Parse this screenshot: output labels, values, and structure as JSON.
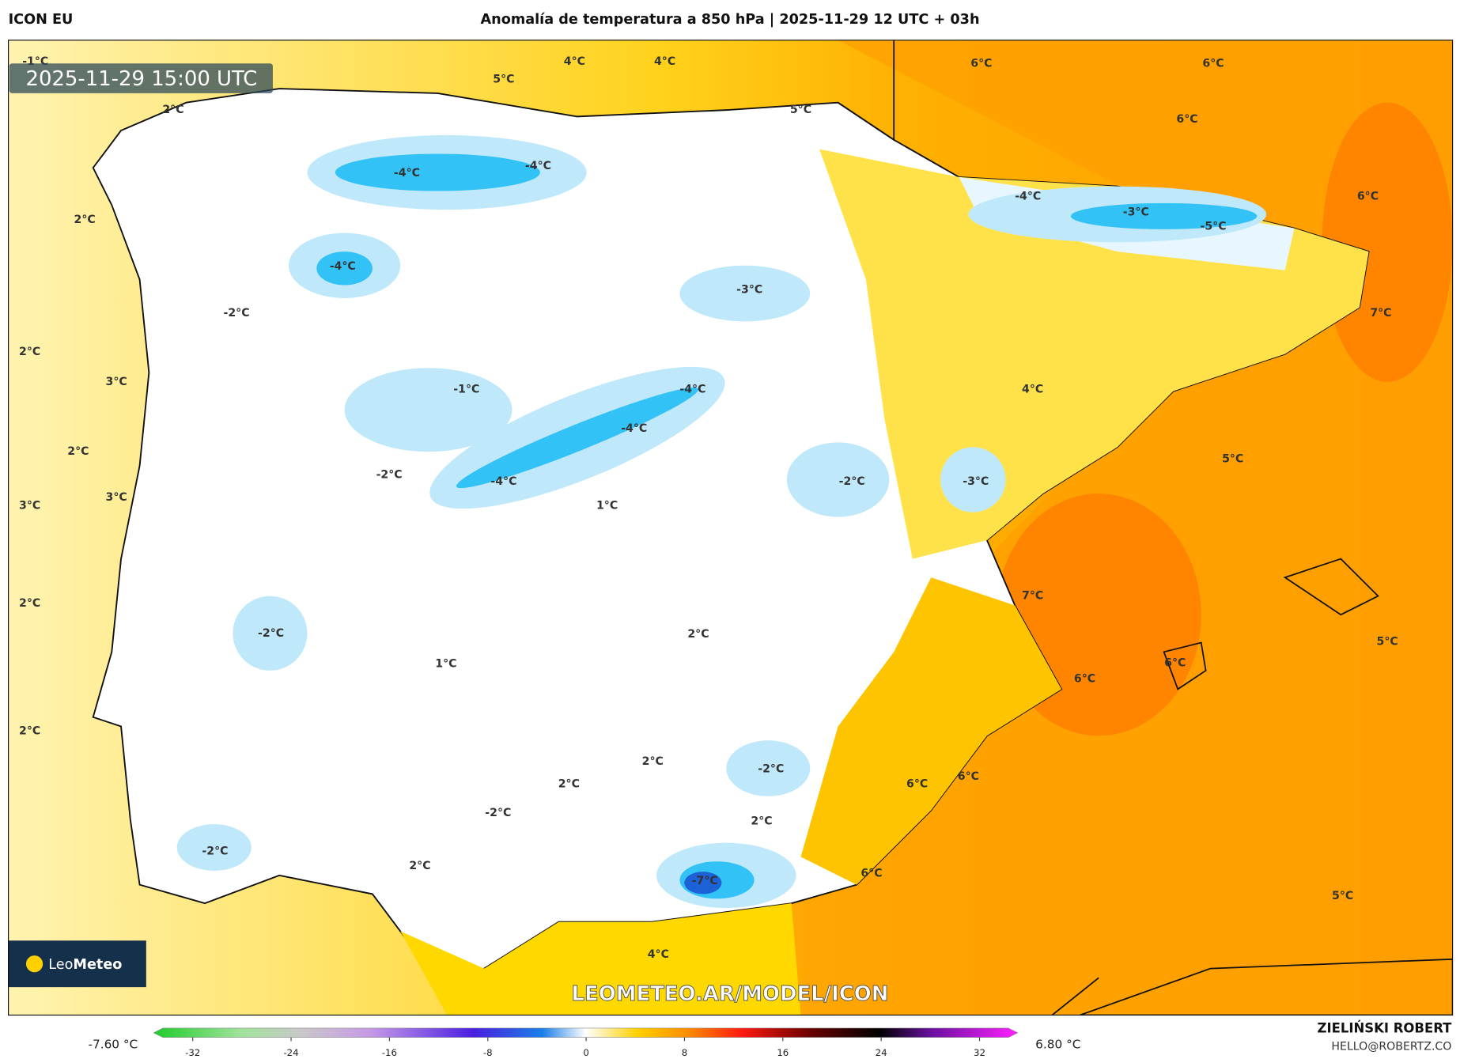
{
  "header": {
    "model": "ICON EU",
    "title": "Anomalía de temperatura a 850 hPa | 2025-11-29 12 UTC + 03h",
    "author": "ZIELIŃSKI ROBERT",
    "contact": "HELLO@ROBERTZ.CO"
  },
  "map": {
    "timestamp": "2025-11-29 15:00 UTC",
    "watermark": "LEOMETEO.AR/MODEL/ICON",
    "logo_light": "Leo",
    "logo_bold": "Meteo",
    "labels": [
      "-1°C",
      "5°C",
      "4°C",
      "4°C",
      "6°C",
      "6°C",
      "2°C",
      "5°C",
      "6°C",
      "-4°C",
      "-4°C",
      "-4°C",
      "6°C",
      "2°C",
      "-3°C",
      "-5°C",
      "-4°C",
      "-3°C",
      "-2°C",
      "7°C",
      "2°C",
      "3°C",
      "-1°C",
      "-4°C",
      "4°C",
      "-4°C",
      "2°C",
      "5°C",
      "-2°C",
      "-4°C",
      "-2°C",
      "-3°C",
      "3°C",
      "3°C",
      "1°C",
      "7°C",
      "2°C",
      "-2°C",
      "2°C",
      "5°C",
      "1°C",
      "6°C",
      "6°C",
      "2°C",
      "2°C",
      "-2°C",
      "2°C",
      "6°C",
      "6°C",
      "-2°C",
      "2°C",
      "-2°C",
      "2°C",
      "6°C",
      "-7°C",
      "5°C",
      "4°C"
    ]
  },
  "legend": {
    "min_label": "-7.60 °C",
    "max_label": "6.80 °C",
    "ticks": [
      -32,
      -24,
      -16,
      -8,
      0,
      8,
      16,
      24,
      32
    ],
    "range": [
      -32,
      32
    ]
  }
}
